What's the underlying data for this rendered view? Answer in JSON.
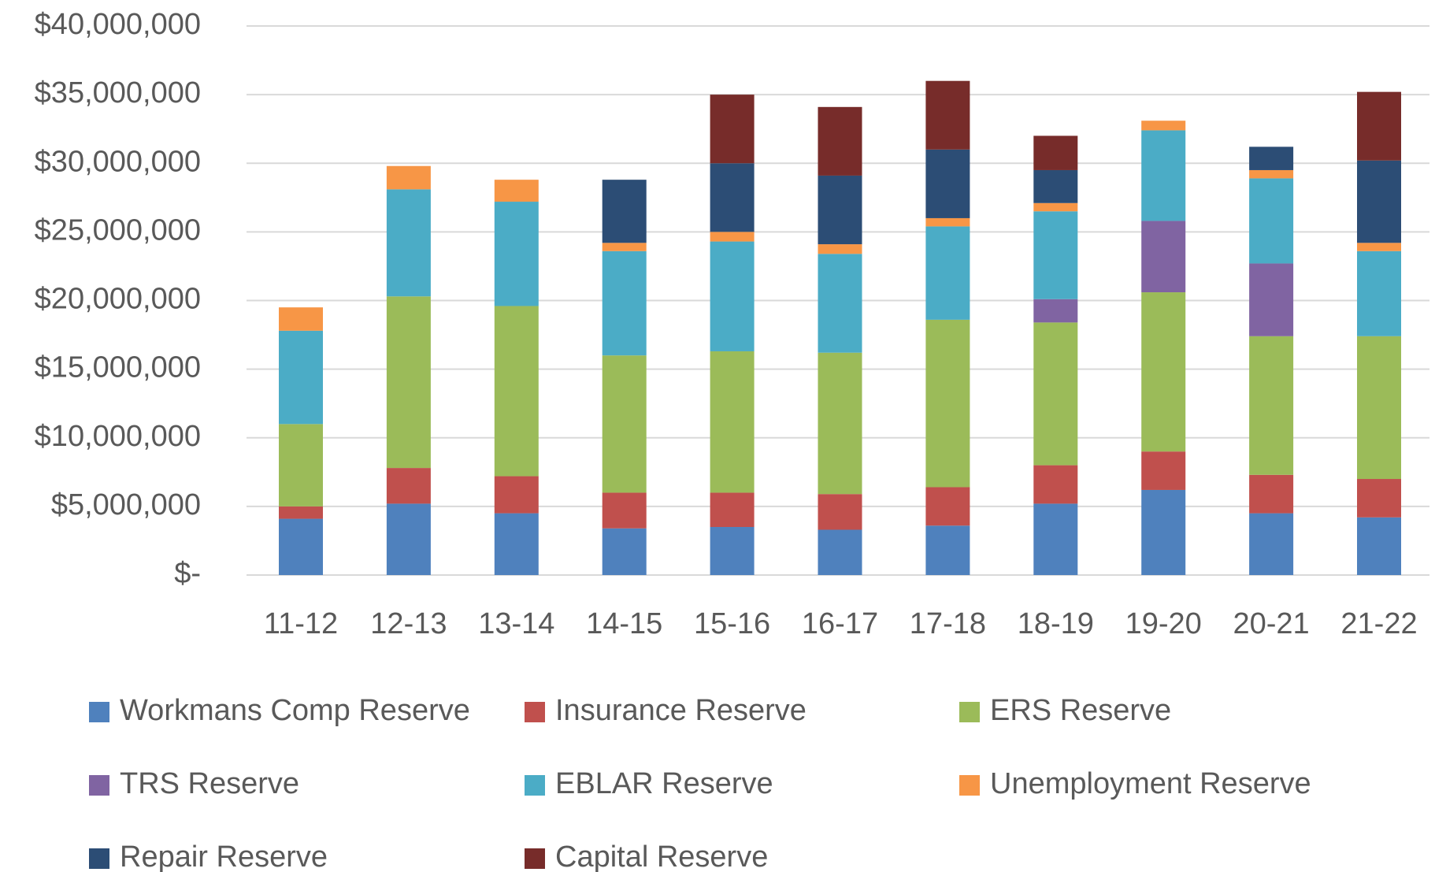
{
  "chart_data": {
    "type": "stacked_bar",
    "categories": [
      "11-12",
      "12-13",
      "13-14",
      "14-15",
      "15-16",
      "16-17",
      "17-18",
      "18-19",
      "19-20",
      "20-21",
      "21-22"
    ],
    "series": [
      {
        "name": "Workmans Comp Reserve",
        "color": "#4f81bd",
        "values": [
          4100000,
          5200000,
          4500000,
          3400000,
          3500000,
          3300000,
          3600000,
          5200000,
          6200000,
          4500000,
          4200000
        ]
      },
      {
        "name": "Insurance Reserve",
        "color": "#c0504d",
        "values": [
          900000,
          2600000,
          2700000,
          2600000,
          2500000,
          2600000,
          2800000,
          2800000,
          2800000,
          2800000,
          2800000
        ]
      },
      {
        "name": "ERS Reserve",
        "color": "#9bbb59",
        "values": [
          6000000,
          12500000,
          12400000,
          10000000,
          10300000,
          10300000,
          12200000,
          10400000,
          11600000,
          10100000,
          10400000
        ]
      },
      {
        "name": "TRS Reserve",
        "color": "#8064a2",
        "values": [
          0,
          0,
          0,
          0,
          0,
          0,
          0,
          1700000,
          5200000,
          5300000,
          0
        ]
      },
      {
        "name": "EBLAR Reserve",
        "color": "#4bacc6",
        "values": [
          6800000,
          7800000,
          7600000,
          7600000,
          8000000,
          7200000,
          6800000,
          6400000,
          6600000,
          6200000,
          6200000
        ]
      },
      {
        "name": "Unemployment Reserve",
        "color": "#f79646",
        "values": [
          1700000,
          1700000,
          1600000,
          600000,
          700000,
          700000,
          600000,
          600000,
          700000,
          600000,
          600000
        ]
      },
      {
        "name": "Repair Reserve",
        "color": "#2c4d75",
        "values": [
          0,
          0,
          0,
          4600000,
          5000000,
          5000000,
          5000000,
          2400000,
          0,
          1700000,
          6000000
        ]
      },
      {
        "name": "Capital Reserve",
        "color": "#772c2a",
        "values": [
          0,
          0,
          0,
          0,
          5000000,
          5000000,
          5000000,
          2500000,
          0,
          0,
          5000000
        ]
      }
    ],
    "ylim": [
      0,
      40000000
    ],
    "yticks": [
      {
        "value": 0,
        "label": "$-"
      },
      {
        "value": 5000000,
        "label": "$5,000,000"
      },
      {
        "value": 10000000,
        "label": "$10,000,000"
      },
      {
        "value": 15000000,
        "label": "$15,000,000"
      },
      {
        "value": 20000000,
        "label": "$20,000,000"
      },
      {
        "value": 25000000,
        "label": "$25,000,000"
      },
      {
        "value": 30000000,
        "label": "$30,000,000"
      },
      {
        "value": 35000000,
        "label": "$35,000,000"
      },
      {
        "value": 40000000,
        "label": "$40,000,000"
      }
    ],
    "grid": true,
    "legend": "bottom"
  }
}
